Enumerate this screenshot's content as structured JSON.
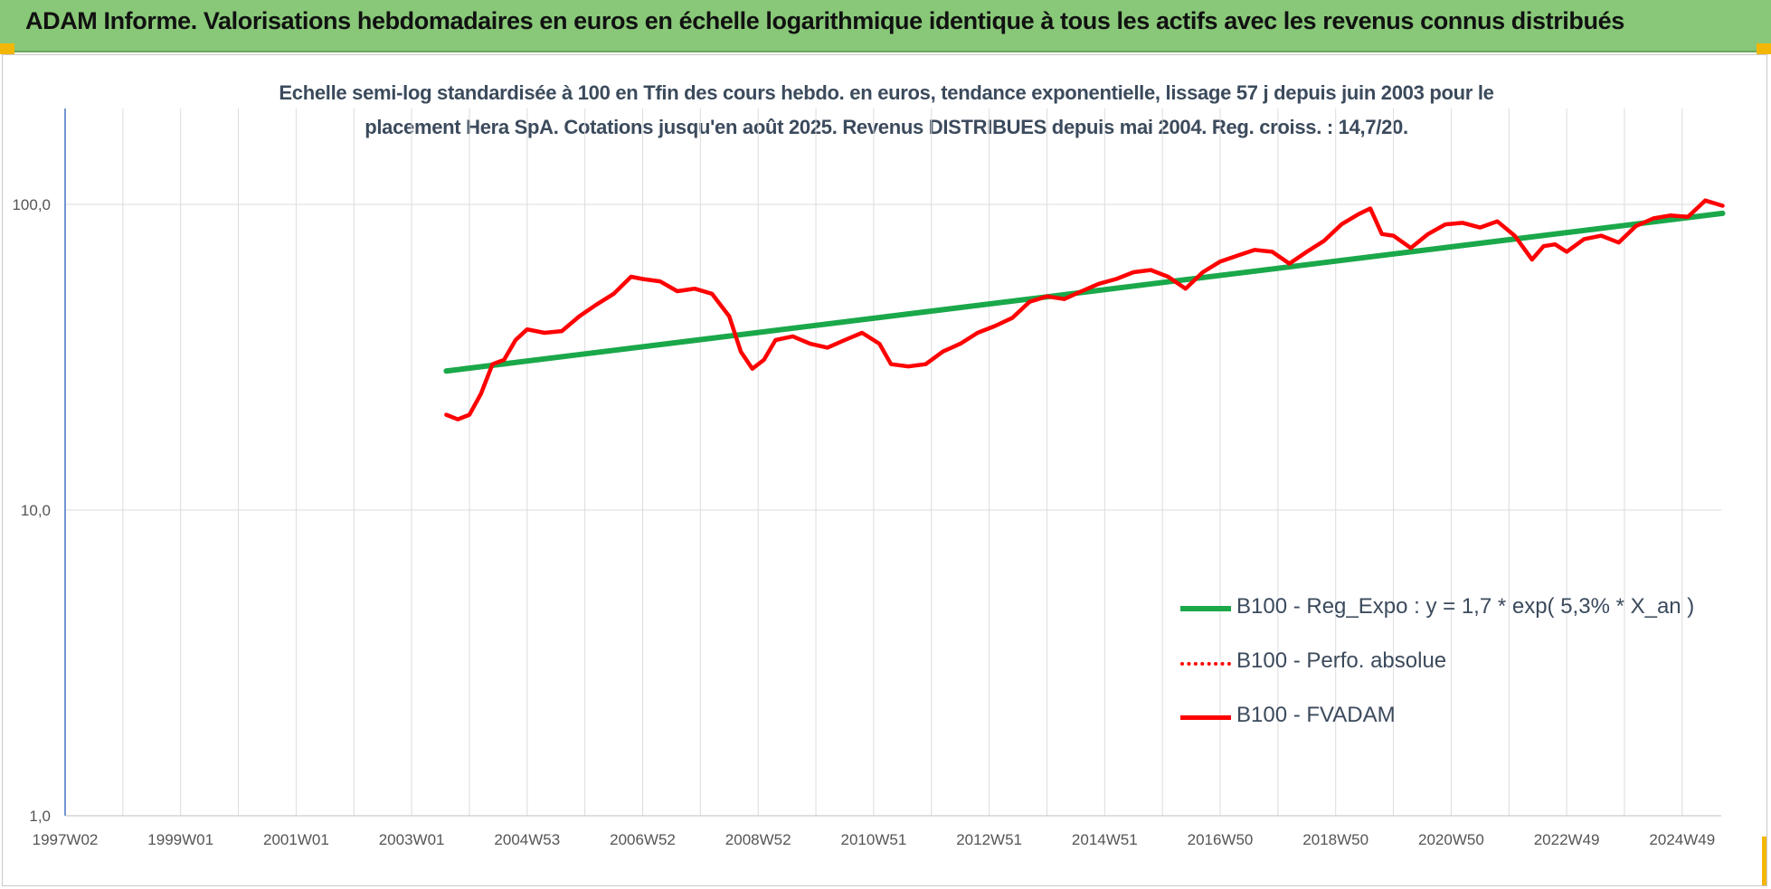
{
  "banner": {
    "title": "ADAM Informe. Valorisations hebdomadaires en euros en échelle logarithmique identique à tous les actifs avec les revenus connus distribués"
  },
  "colors": {
    "banner_bg": "#88c878",
    "regression": "#1aa84a",
    "perfo": "#ff0000",
    "fvadam": "#ff0000",
    "text": "#3b4a5c",
    "accent_corner": "#f2b705"
  },
  "chart_data": {
    "type": "line",
    "title": "Echelle semi-log standardisée à 100 en Tfin des cours hebdo. en euros, tendance exponentielle, lissage 57 j depuis juin 2003 pour le placement Hera SpA. Cotations jusqu'en août 2025. Revenus DISTRIBUES depuis mai 2004. Reg. croiss. : 14,7/20.",
    "title_lines": [
      "Echelle semi-log standardisée à 100 en Tfin des cours hebdo. en euros, tendance exponentielle, lissage 57 j depuis juin 2003 pour le",
      "placement Hera SpA. Cotations jusqu'en août 2025. Revenus DISTRIBUES depuis mai 2004. Reg. croiss. : 14,7/20."
    ],
    "y_scale": "log",
    "ylim": [
      1,
      200
    ],
    "xlim": [
      1997.0,
      2025.7
    ],
    "y_ticks": [
      {
        "value": 1,
        "label": "1,0"
      },
      {
        "value": 10,
        "label": "10,0"
      },
      {
        "value": 100,
        "label": "100,0"
      }
    ],
    "x_ticks": [
      {
        "t": 1997.0,
        "label": "1997W02"
      },
      {
        "t": 1999.0,
        "label": "1999W01"
      },
      {
        "t": 2001.0,
        "label": "2001W01"
      },
      {
        "t": 2003.0,
        "label": "2003W01"
      },
      {
        "t": 2005.0,
        "label": "2004W53"
      },
      {
        "t": 2007.0,
        "label": "2006W52"
      },
      {
        "t": 2009.0,
        "label": "2008W52"
      },
      {
        "t": 2011.0,
        "label": "2010W51"
      },
      {
        "t": 2013.0,
        "label": "2012W51"
      },
      {
        "t": 2015.0,
        "label": "2014W51"
      },
      {
        "t": 2017.0,
        "label": "2016W50"
      },
      {
        "t": 2019.0,
        "label": "2018W50"
      },
      {
        "t": 2021.0,
        "label": "2020W50"
      },
      {
        "t": 2023.0,
        "label": "2022W49"
      },
      {
        "t": 2025.0,
        "label": "2024W49"
      }
    ],
    "grid": true,
    "legend_position": "bottom-right",
    "series": [
      {
        "name": "B100 - Reg_Expo : y = 1,7 * exp( 5,3% *  X_an )",
        "style": "solid-green",
        "x": [
          2003.6,
          2025.7
        ],
        "y": [
          28.5,
          93.5
        ]
      },
      {
        "name": "B100 - Perfo. absolue",
        "style": "dotted-red",
        "x": [],
        "y": []
      },
      {
        "name": "B100 - FVADAM",
        "style": "solid-red",
        "x": [
          2003.6,
          2003.8,
          2004.0,
          2004.2,
          2004.4,
          2004.6,
          2004.8,
          2005.0,
          2005.3,
          2005.6,
          2005.9,
          2006.2,
          2006.5,
          2006.8,
          2007.0,
          2007.3,
          2007.6,
          2007.9,
          2008.2,
          2008.5,
          2008.7,
          2008.9,
          2009.1,
          2009.3,
          2009.6,
          2009.9,
          2010.2,
          2010.5,
          2010.8,
          2011.1,
          2011.3,
          2011.6,
          2011.9,
          2012.2,
          2012.5,
          2012.8,
          2013.1,
          2013.4,
          2013.7,
          2014.0,
          2014.3,
          2014.6,
          2014.9,
          2015.2,
          2015.5,
          2015.8,
          2016.1,
          2016.4,
          2016.7,
          2017.0,
          2017.3,
          2017.6,
          2017.9,
          2018.2,
          2018.5,
          2018.8,
          2019.1,
          2019.4,
          2019.6,
          2019.8,
          2020.0,
          2020.3,
          2020.6,
          2020.9,
          2021.2,
          2021.5,
          2021.8,
          2022.1,
          2022.4,
          2022.6,
          2022.8,
          2023.0,
          2023.3,
          2023.6,
          2023.9,
          2024.2,
          2024.5,
          2024.8,
          2025.1,
          2025.4,
          2025.7
        ],
        "y": [
          20.5,
          19.8,
          20.5,
          24,
          30,
          31,
          36,
          39,
          38,
          38.5,
          43,
          47,
          51,
          58,
          57,
          56,
          52,
          53,
          51,
          43,
          33,
          29,
          31,
          36,
          37,
          35,
          34,
          36,
          38,
          35,
          30,
          29.5,
          30,
          33,
          35,
          38,
          40,
          42.5,
          48,
          50,
          49,
          52,
          55,
          57,
          60,
          61,
          58,
          53,
          60,
          65,
          68,
          71,
          70,
          64,
          70,
          76,
          86,
          93,
          97,
          80,
          79,
          72,
          80,
          86,
          87,
          84,
          88,
          79,
          66,
          73,
          74,
          70,
          77,
          79,
          75,
          85,
          90,
          92,
          91,
          103,
          99
        ]
      }
    ]
  }
}
